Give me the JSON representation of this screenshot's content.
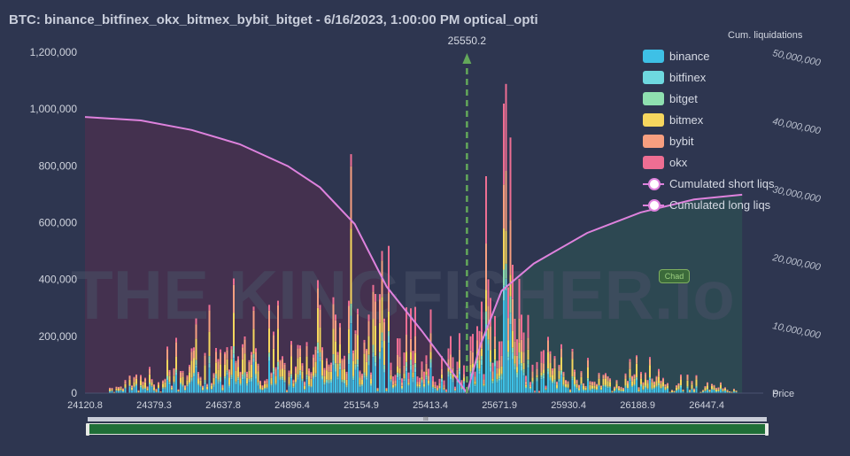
{
  "title": "BTC: binance_bitfinex_okx_bitmex_bybit_bitget - 6/16/2023, 1:00:00 PM optical_opti",
  "watermark": "THE KINGFISHER.io",
  "badge": "Chad",
  "current_price_label": "25550.2",
  "scroll_grip": "III",
  "colors": {
    "background": "#2e3650",
    "binance": "#3ec0e6",
    "bitfinex": "#6ed8df",
    "bitget": "#8fe0b0",
    "bitmex": "#f6d65e",
    "bybit": "#f79f80",
    "okx": "#ee6e93",
    "cumulative_line": "#de82dd",
    "price_marker": "#63a85a"
  },
  "legend": [
    {
      "label": "binance",
      "key": "binance"
    },
    {
      "label": "bitfinex",
      "key": "bitfinex"
    },
    {
      "label": "bitget",
      "key": "bitget"
    },
    {
      "label": "bitmex",
      "key": "bitmex"
    },
    {
      "label": "bybit",
      "key": "bybit"
    },
    {
      "label": "okx",
      "key": "okx"
    },
    {
      "label": "Cumulated short liqs",
      "key": "short"
    },
    {
      "label": "Cumulated long liqs",
      "key": "long"
    }
  ],
  "chart_data": {
    "type": "bar",
    "stacked": true,
    "title": "BTC: binance_bitfinex_okx_bitmex_bybit_bitget - 6/16/2023, 1:00:00 PM optical_opti",
    "xlabel": "Price",
    "ylabel_right": "Cum. liquidations",
    "x_ticks": [
      "24120.8",
      "24379.3",
      "24637.8",
      "24896.4",
      "25154.9",
      "25413.4",
      "25671.9",
      "25930.4",
      "26188.9",
      "26447.4"
    ],
    "xlim": [
      24120.8,
      26659.0
    ],
    "y_ticks": [
      "0",
      "200,000",
      "400,000",
      "600,000",
      "800,000",
      "1,000,000",
      "1,200,000"
    ],
    "ylim": [
      0,
      1200000
    ],
    "y2_ticks": [
      "0",
      "10,000,000",
      "20,000,000",
      "30,000,000",
      "40,000,000",
      "50,000,000"
    ],
    "y2lim": [
      0,
      50000000
    ],
    "current_price": 25550.2,
    "series_names": [
      "binance",
      "bitfinex",
      "bitget",
      "bitmex",
      "bybit",
      "okx"
    ],
    "bar_samples": [
      {
        "price": 24140,
        "total": 25000
      },
      {
        "price": 24300,
        "total": 60000
      },
      {
        "price": 24440,
        "total": 180000
      },
      {
        "price": 24640,
        "total": 420000
      },
      {
        "price": 24750,
        "total": 300000
      },
      {
        "price": 24900,
        "total": 320000
      },
      {
        "price": 25060,
        "total": 440000
      },
      {
        "price": 25120,
        "total": 850000
      },
      {
        "price": 25200,
        "total": 660000
      },
      {
        "price": 25300,
        "total": 350000
      },
      {
        "price": 25450,
        "total": 250000
      },
      {
        "price": 25520,
        "total": 340000
      },
      {
        "price": 25600,
        "total": 640000
      },
      {
        "price": 25690,
        "total": 1050000
      },
      {
        "price": 25800,
        "total": 280000
      },
      {
        "price": 26000,
        "total": 110000
      },
      {
        "price": 26200,
        "total": 130000
      },
      {
        "price": 26350,
        "total": 70000
      },
      {
        "price": 26520,
        "total": 65000
      }
    ],
    "cumulated_short_liqs": [
      {
        "price": 24120.8,
        "value": 40500000
      },
      {
        "price": 24330,
        "value": 40000000
      },
      {
        "price": 24520,
        "value": 38600000
      },
      {
        "price": 24700,
        "value": 36500000
      },
      {
        "price": 24880,
        "value": 33300000
      },
      {
        "price": 25000,
        "value": 30200000
      },
      {
        "price": 25130,
        "value": 24800000
      },
      {
        "price": 25250,
        "value": 15600000
      },
      {
        "price": 25380,
        "value": 9200000
      },
      {
        "price": 25470,
        "value": 4500000
      },
      {
        "price": 25550.2,
        "value": 0
      }
    ],
    "cumulated_long_liqs": [
      {
        "price": 25550.2,
        "value": 0
      },
      {
        "price": 25600,
        "value": 7000000
      },
      {
        "price": 25680,
        "value": 15000000
      },
      {
        "price": 25800,
        "value": 19000000
      },
      {
        "price": 26000,
        "value": 23500000
      },
      {
        "price": 26200,
        "value": 26500000
      },
      {
        "price": 26400,
        "value": 28400000
      },
      {
        "price": 26580,
        "value": 29100000
      }
    ]
  }
}
